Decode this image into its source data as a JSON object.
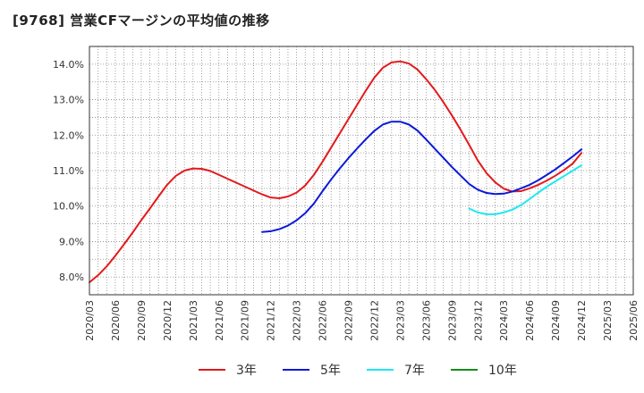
{
  "chart_data": {
    "type": "line",
    "title": "[9768]  営業CFマージンの平均値の推移",
    "xlabel": "",
    "ylabel": "",
    "ylim": [
      7.5,
      14.5
    ],
    "yticks": [
      "8.0%",
      "9.0%",
      "10.0%",
      "11.0%",
      "12.0%",
      "13.0%",
      "14.0%"
    ],
    "ytick_values": [
      8,
      9,
      10,
      11,
      12,
      13,
      14
    ],
    "xticks": [
      "2020/03",
      "2020/06",
      "2020/09",
      "2020/12",
      "2021/03",
      "2021/06",
      "2021/09",
      "2021/12",
      "2022/03",
      "2022/06",
      "2022/09",
      "2022/12",
      "2023/03",
      "2023/06",
      "2023/09",
      "2023/12",
      "2024/03",
      "2024/06",
      "2024/09",
      "2024/12",
      "2025/03",
      "2025/06"
    ],
    "grid": true,
    "legend_position": "bottom",
    "series": [
      {
        "name": "3年",
        "color": "#e31a1c",
        "x": [
          "2020/03",
          "2020/04",
          "2020/05",
          "2020/06",
          "2020/07",
          "2020/08",
          "2020/09",
          "2020/10",
          "2020/11",
          "2020/12",
          "2021/01",
          "2021/02",
          "2021/03",
          "2021/04",
          "2021/05",
          "2021/06",
          "2021/07",
          "2021/08",
          "2021/09",
          "2021/10",
          "2021/11",
          "2021/12",
          "2022/01",
          "2022/02",
          "2022/03",
          "2022/04",
          "2022/05",
          "2022/06",
          "2022/07",
          "2022/08",
          "2022/09",
          "2022/10",
          "2022/11",
          "2022/12",
          "2023/01",
          "2023/02",
          "2023/03",
          "2023/04",
          "2023/05",
          "2023/06",
          "2023/07",
          "2023/08",
          "2023/09",
          "2023/10",
          "2023/11",
          "2023/12",
          "2024/01",
          "2024/02",
          "2024/03",
          "2024/04",
          "2024/05",
          "2024/06",
          "2024/07",
          "2024/08",
          "2024/09",
          "2024/10",
          "2024/11",
          "2024/12"
        ],
        "values": [
          7.85,
          8.05,
          8.3,
          8.6,
          8.92,
          9.25,
          9.6,
          9.93,
          10.27,
          10.6,
          10.85,
          11.0,
          11.06,
          11.05,
          10.99,
          10.88,
          10.77,
          10.66,
          10.55,
          10.44,
          10.33,
          10.24,
          10.22,
          10.27,
          10.38,
          10.58,
          10.88,
          11.25,
          11.65,
          12.05,
          12.45,
          12.85,
          13.25,
          13.62,
          13.9,
          14.05,
          14.08,
          14.02,
          13.85,
          13.58,
          13.28,
          12.93,
          12.55,
          12.15,
          11.72,
          11.28,
          10.93,
          10.67,
          10.49,
          10.41,
          10.42,
          10.5,
          10.6,
          10.72,
          10.86,
          11.02,
          11.2,
          11.5
        ]
      },
      {
        "name": "5年",
        "color": "#0a1ad8",
        "x": [
          "2021/11",
          "2021/12",
          "2022/01",
          "2022/02",
          "2022/03",
          "2022/04",
          "2022/05",
          "2022/06",
          "2022/07",
          "2022/08",
          "2022/09",
          "2022/10",
          "2022/11",
          "2022/12",
          "2023/01",
          "2023/02",
          "2023/03",
          "2023/04",
          "2023/05",
          "2023/06",
          "2023/07",
          "2023/08",
          "2023/09",
          "2023/10",
          "2023/11",
          "2023/12",
          "2024/01",
          "2024/02",
          "2024/03",
          "2024/04",
          "2024/05",
          "2024/06",
          "2024/07",
          "2024/08",
          "2024/09",
          "2024/10",
          "2024/11",
          "2024/12"
        ],
        "values": [
          9.27,
          9.29,
          9.35,
          9.45,
          9.6,
          9.8,
          10.07,
          10.42,
          10.75,
          11.06,
          11.35,
          11.62,
          11.88,
          12.12,
          12.3,
          12.38,
          12.38,
          12.3,
          12.13,
          11.88,
          11.62,
          11.36,
          11.1,
          10.86,
          10.62,
          10.46,
          10.37,
          10.34,
          10.35,
          10.41,
          10.5,
          10.6,
          10.73,
          10.88,
          11.04,
          11.22,
          11.4,
          11.6
        ]
      },
      {
        "name": "7年",
        "color": "#1ee8f0",
        "x": [
          "2023/11",
          "2023/12",
          "2024/01",
          "2024/02",
          "2024/03",
          "2024/04",
          "2024/05",
          "2024/06",
          "2024/07",
          "2024/08",
          "2024/09",
          "2024/10",
          "2024/11",
          "2024/12"
        ],
        "values": [
          9.93,
          9.82,
          9.77,
          9.77,
          9.82,
          9.9,
          10.03,
          10.2,
          10.38,
          10.55,
          10.7,
          10.85,
          11.0,
          11.15
        ]
      },
      {
        "name": "10年",
        "color": "#158c1a",
        "x": [],
        "values": []
      }
    ]
  }
}
